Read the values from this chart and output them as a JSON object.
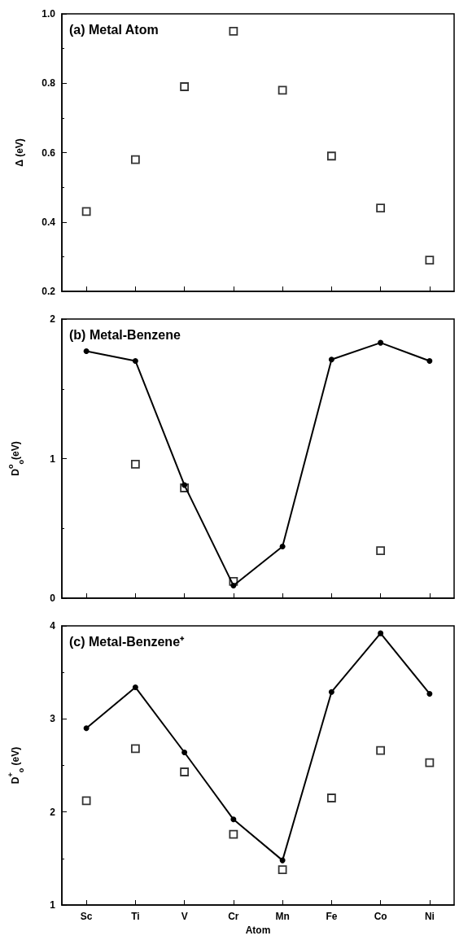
{
  "chart_data": [
    {
      "type": "scatter",
      "title": "(a) Metal Atom",
      "ylabel": "Δ (eV)",
      "categories": [
        null,
        null,
        null,
        null,
        null,
        null,
        null,
        null
      ],
      "ylim": [
        0.2,
        1.0
      ],
      "yticks": [
        0.2,
        0.4,
        0.6,
        0.8,
        {
          "value": 1.0,
          "label": "1.0"
        }
      ],
      "grid": false,
      "tick_labels": "y",
      "series": [
        {
          "color": "#000000",
          "marker": "square",
          "values": [
            0.43,
            0.58,
            0.79,
            0.95,
            0.78,
            0.59,
            0.44,
            0.29
          ]
        }
      ]
    },
    {
      "type": "line",
      "title": "(b) Metal-Benzene",
      "ylabel": "D$^{o}$$_{o}$(eV)",
      "categories": [
        null,
        null,
        null,
        null,
        null,
        null,
        null,
        null
      ],
      "ylim": [
        0,
        2
      ],
      "yticks": [
        0,
        1,
        2
      ],
      "grid": false,
      "tick_labels": "y",
      "series": [
        {
          "color": "#000000",
          "marker": "circle",
          "line_style": "solid",
          "values": [
            1.77,
            1.7,
            0.81,
            0.09,
            0.37,
            1.71,
            1.83,
            1.7
          ]
        },
        {
          "type": "scatter",
          "color": "#000000",
          "marker": "square",
          "values": [
            null,
            0.96,
            0.79,
            0.12,
            null,
            null,
            0.34,
            null
          ]
        }
      ]
    },
    {
      "type": "line",
      "title": "(c) Metal-Benzene⁺",
      "ylabel": "D$^{+}$$_{o}$ (eV)",
      "xlabel": "Atom",
      "categories": [
        "Sc",
        "Ti",
        "V",
        "Cr",
        "Mn",
        "Fe",
        "Co",
        "Ni"
      ],
      "ylim": [
        1,
        4
      ],
      "yticks": [
        1,
        2,
        3,
        4
      ],
      "grid": false,
      "series": [
        {
          "color": "#000000",
          "marker": "circle",
          "line_style": "solid",
          "values": [
            2.9,
            3.34,
            2.64,
            1.92,
            1.48,
            3.29,
            3.92,
            3.27
          ]
        },
        {
          "type": "scatter",
          "color": "#000000",
          "marker": "square",
          "values": [
            2.12,
            2.68,
            2.43,
            1.76,
            1.38,
            2.15,
            2.66,
            2.53
          ]
        }
      ]
    }
  ]
}
